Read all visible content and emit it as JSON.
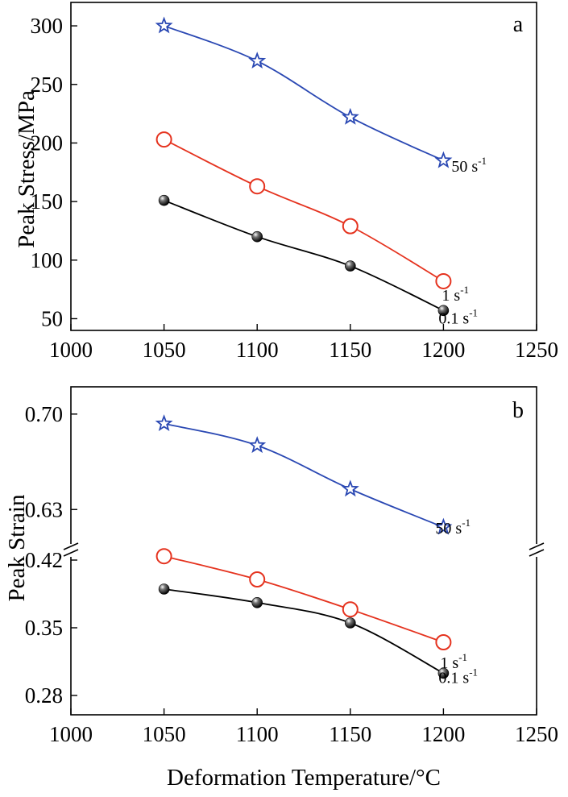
{
  "chart_data": [
    {
      "type": "line",
      "panel_label": "a",
      "ylabel": "Peak Stress/MPa",
      "xlabel": "",
      "xlim": [
        1000,
        1250
      ],
      "ylim": [
        40,
        320
      ],
      "xticks": [
        "1000",
        "1050",
        "1100",
        "1150",
        "1200",
        "1250"
      ],
      "yticks": [
        "50",
        "100",
        "150",
        "200",
        "250",
        "300"
      ],
      "x": [
        1050,
        1100,
        1150,
        1200
      ],
      "series": [
        {
          "name": "50 s",
          "unit_sup": "-1",
          "marker": "star",
          "color": "#2a48b3",
          "values": [
            300,
            270,
            222,
            185
          ]
        },
        {
          "name": "1 s",
          "unit_sup": "-1",
          "marker": "circle-open",
          "color": "#e5331f",
          "values": [
            203,
            163,
            129,
            82
          ]
        },
        {
          "name": "0.1 s",
          "unit_sup": "-1",
          "marker": "ball",
          "color": "#000000",
          "values": [
            151,
            120,
            95,
            57
          ]
        }
      ]
    },
    {
      "type": "line",
      "panel_label": "b",
      "ylabel": "Peak Strain",
      "xlabel": "Deformation Temperature/°C",
      "xlim": [
        1000,
        1250
      ],
      "axis_break": true,
      "ylim_lower": [
        0.26,
        0.43
      ],
      "ylim_upper": [
        0.6,
        0.72
      ],
      "xticks": [
        "1000",
        "1050",
        "1100",
        "1150",
        "1200",
        "1250"
      ],
      "yticks_lower": [
        "0.28",
        "0.35",
        "0.42"
      ],
      "yticks_upper": [
        "0.63",
        "0.70"
      ],
      "x": [
        1050,
        1100,
        1150,
        1200
      ],
      "series": [
        {
          "name": "50 s",
          "unit_sup": "-1",
          "marker": "star",
          "color": "#2a48b3",
          "values": [
            0.693,
            0.677,
            0.645,
            0.617
          ]
        },
        {
          "name": "1 s",
          "unit_sup": "-1",
          "marker": "circle-open",
          "color": "#e5331f",
          "values": [
            0.424,
            0.4,
            0.369,
            0.335
          ]
        },
        {
          "name": "0.1 s",
          "unit_sup": "-1",
          "marker": "ball",
          "color": "#000000",
          "values": [
            0.39,
            0.376,
            0.355,
            0.303
          ]
        }
      ]
    }
  ]
}
